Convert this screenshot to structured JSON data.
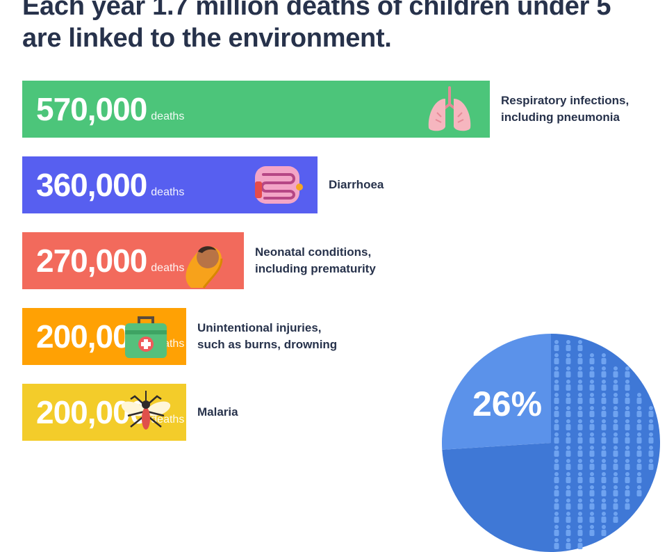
{
  "title": {
    "line1": "Each year 1.7 million deaths of children under 5",
    "line2": "are linked to the environment."
  },
  "chart_data": {
    "type": "bar",
    "orientation": "horizontal",
    "unit": "deaths",
    "categories": [
      "Respiratory infections, including pneumonia",
      "Diarrhoea",
      "Neonatal conditions, including prematurity",
      "Unintentional injuries, such as burns, drowning",
      "Malaria"
    ],
    "values": [
      570000,
      360000,
      270000,
      200000,
      200000
    ],
    "value_labels": [
      "570,000",
      "360,000",
      "270,000",
      "200,000",
      "200,000"
    ],
    "label_lines": [
      [
        "Respiratory infections,",
        "including pneumonia"
      ],
      [
        "Diarrhoea"
      ],
      [
        "Neonatal conditions,",
        "including prematurity"
      ],
      [
        "Unintentional injuries,",
        "such as burns, drowning"
      ],
      [
        "Malaria"
      ]
    ],
    "colors": [
      "#4cc57a",
      "#575ff0",
      "#f26a5c",
      "#ffa104",
      "#f3cc2a"
    ],
    "icons": [
      "lungs-icon",
      "intestine-icon",
      "baby-icon",
      "first-aid-kit-icon",
      "mosquito-icon"
    ],
    "xlim": [
      0,
      570000
    ],
    "pie": {
      "value": 26,
      "label": "26%",
      "color": "#5b92ea",
      "rest_color": "#3f78d6"
    }
  }
}
